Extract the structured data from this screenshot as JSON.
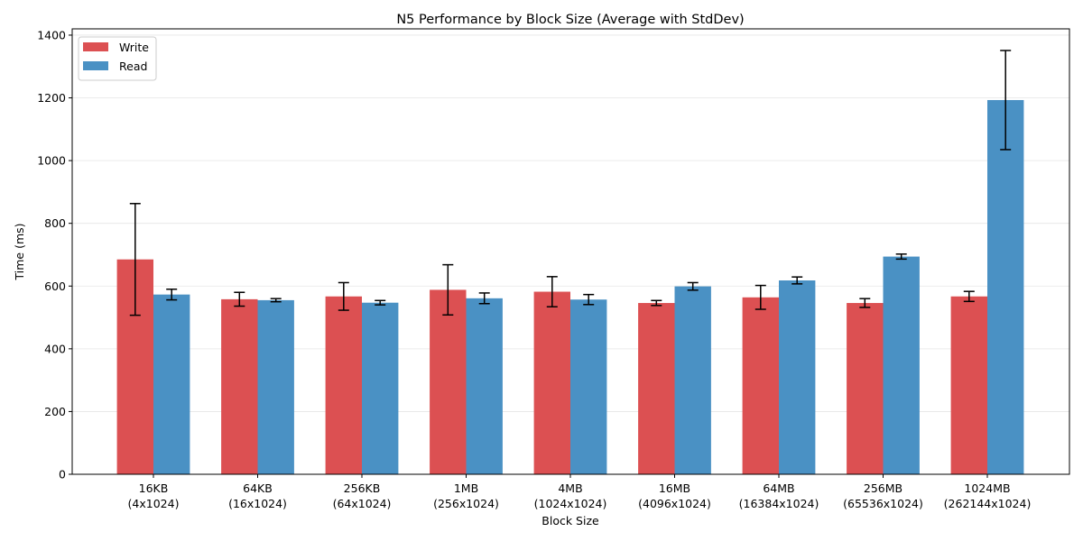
{
  "chart_data": {
    "type": "bar",
    "title": "N5 Performance by Block Size (Average with StdDev)",
    "xlabel": "Block Size",
    "ylabel": "Time (ms)",
    "ylim": [
      0,
      1420
    ],
    "yticks": [
      0,
      200,
      400,
      600,
      800,
      1000,
      1200,
      1400
    ],
    "grid": "y",
    "legend_position": "top-left",
    "categories": [
      [
        "16KB",
        "(4x1024)"
      ],
      [
        "64KB",
        "(16x1024)"
      ],
      [
        "256KB",
        "(64x1024)"
      ],
      [
        "1MB",
        "(256x1024)"
      ],
      [
        "4MB",
        "(1024x1024)"
      ],
      [
        "16MB",
        "(4096x1024)"
      ],
      [
        "64MB",
        "(16384x1024)"
      ],
      [
        "256MB",
        "(65536x1024)"
      ],
      [
        "1024MB",
        "(262144x1024)"
      ]
    ],
    "series": [
      {
        "name": "Write",
        "color": "#dc5052",
        "values": [
          685,
          558,
          567,
          588,
          582,
          546,
          564,
          546,
          567
        ],
        "errors": [
          178,
          22,
          44,
          80,
          48,
          8,
          38,
          14,
          16
        ]
      },
      {
        "name": "Read",
        "color": "#4a91c4",
        "values": [
          573,
          555,
          547,
          561,
          557,
          599,
          618,
          694,
          1193
        ],
        "errors": [
          17,
          5,
          7,
          17,
          16,
          12,
          11,
          8,
          158
        ]
      }
    ]
  }
}
